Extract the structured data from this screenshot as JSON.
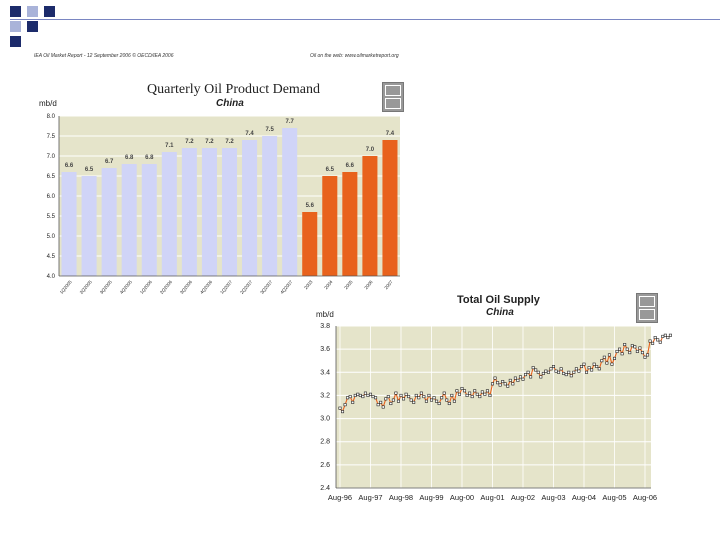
{
  "slide": {
    "report_left": "IEA Oil Market Report - 12 September 2006    © OECD/IEA 2006",
    "report_right": "Oil on the web: www.oilmarketreport.org",
    "colors": {
      "navy": "#1c2b6b",
      "square_light": "#a9b3d9",
      "bar_light": "#d0d4f7",
      "bar_orange": "#e8621c",
      "panel_bg": "#e5e4ca",
      "line_orange": "#e8621c"
    },
    "icons": [
      "iea-logo-icon",
      "iea-logo-icon"
    ]
  },
  "chart_data": [
    {
      "type": "bar",
      "title": "Quarterly Oil Product Demand",
      "subtitle": "China",
      "ylabel": "mb/d",
      "ylim": [
        4.0,
        8.0
      ],
      "yticks": [
        "4.0",
        "4.5",
        "5.0",
        "5.5",
        "6.0",
        "6.5",
        "7.0",
        "7.5",
        "8.0"
      ],
      "categories": [
        "1Q2005",
        "2Q2005",
        "3Q2005",
        "4Q2005",
        "1Q2006",
        "2Q2006",
        "3Q2006",
        "4Q2006",
        "1Q2007",
        "2Q2007",
        "3Q2007",
        "4Q2007",
        "2003",
        "2004",
        "2005",
        "2006",
        "2007"
      ],
      "values": [
        6.6,
        6.5,
        6.7,
        6.8,
        6.8,
        7.1,
        7.2,
        7.2,
        7.2,
        7.4,
        7.5,
        7.7,
        5.6,
        6.5,
        6.6,
        7.0,
        7.4
      ],
      "value_labels": [
        "6.6",
        "6.5",
        "6.7",
        "6.8",
        "6.8",
        "7.1",
        "7.2",
        "7.2",
        "7.2",
        "7.4",
        "7.5",
        "7.7",
        "5.6",
        "6.5",
        "6.6",
        "7.0",
        "7.4"
      ],
      "grid": true
    },
    {
      "type": "line",
      "title": "Total Oil Supply",
      "subtitle": "China",
      "ylabel": "mb/d",
      "ylim": [
        2.4,
        3.8
      ],
      "yticks": [
        "2.4",
        "2.6",
        "2.8",
        "3.0",
        "3.2",
        "3.4",
        "3.6",
        "3.8"
      ],
      "xticks": [
        "Aug-96",
        "Aug-97",
        "Aug-98",
        "Aug-99",
        "Aug-00",
        "Aug-01",
        "Aug-02",
        "Aug-03",
        "Aug-04",
        "Aug-05",
        "Aug-06"
      ],
      "x_start": "1996-08",
      "values": [
        3.09,
        3.06,
        3.12,
        3.18,
        3.19,
        3.14,
        3.2,
        3.21,
        3.2,
        3.19,
        3.22,
        3.2,
        3.21,
        3.19,
        3.18,
        3.12,
        3.14,
        3.1,
        3.17,
        3.19,
        3.13,
        3.16,
        3.22,
        3.15,
        3.2,
        3.17,
        3.21,
        3.19,
        3.16,
        3.14,
        3.2,
        3.18,
        3.22,
        3.19,
        3.15,
        3.2,
        3.16,
        3.18,
        3.15,
        3.13,
        3.18,
        3.22,
        3.16,
        3.13,
        3.2,
        3.15,
        3.24,
        3.21,
        3.26,
        3.24,
        3.2,
        3.22,
        3.19,
        3.24,
        3.21,
        3.19,
        3.23,
        3.21,
        3.24,
        3.2,
        3.3,
        3.35,
        3.31,
        3.29,
        3.32,
        3.3,
        3.28,
        3.33,
        3.3,
        3.35,
        3.33,
        3.36,
        3.34,
        3.38,
        3.4,
        3.36,
        3.44,
        3.42,
        3.4,
        3.36,
        3.39,
        3.41,
        3.4,
        3.43,
        3.45,
        3.41,
        3.4,
        3.43,
        3.39,
        3.38,
        3.4,
        3.37,
        3.4,
        3.43,
        3.41,
        3.45,
        3.47,
        3.4,
        3.44,
        3.42,
        3.47,
        3.45,
        3.43,
        3.5,
        3.53,
        3.48,
        3.55,
        3.47,
        3.52,
        3.58,
        3.6,
        3.56,
        3.64,
        3.6,
        3.57,
        3.63,
        3.62,
        3.58,
        3.61,
        3.57,
        3.53,
        3.55,
        3.67,
        3.65,
        3.7,
        3.68,
        3.66,
        3.71,
        3.72,
        3.7,
        3.72
      ],
      "grid": true
    }
  ]
}
